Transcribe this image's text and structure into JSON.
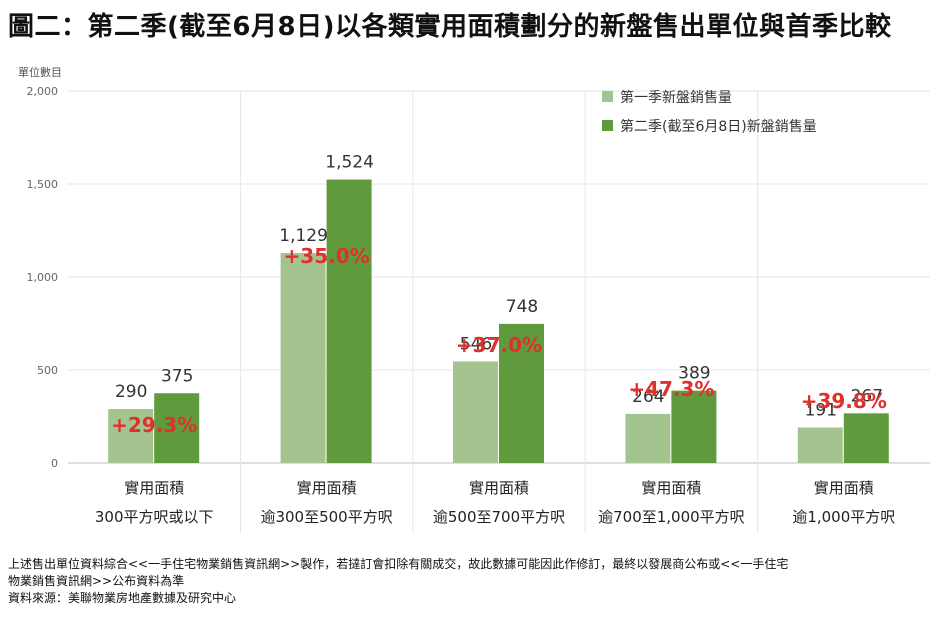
{
  "title": "圖二：第二季(截至6月8日)以各類實用面積劃分的新盤售出單位與首季比較",
  "chart_data": {
    "type": "bar",
    "ylabel": "單位數目",
    "ylim": [
      0,
      2000
    ],
    "yticks": [
      "0",
      "500",
      "1,000",
      "1,500",
      "2,000"
    ],
    "ytick_values": [
      0,
      500,
      1000,
      1500,
      2000
    ],
    "grid": true,
    "legend_position": "top-right",
    "categories": [
      [
        "實用面積",
        "300平方呎或以下"
      ],
      [
        "實用面積",
        "逾300至500平方呎"
      ],
      [
        "實用面積",
        "逾500至700平方呎"
      ],
      [
        "實用面積",
        "逾700至1,000平方呎"
      ],
      [
        "實用面積",
        "逾1,000平方呎"
      ]
    ],
    "series": [
      {
        "name": "第一季新盤銷售量",
        "color": "#a3c48e",
        "values": [
          290,
          1129,
          546,
          264,
          191
        ],
        "labels": [
          "290",
          "1,129",
          "546",
          "264",
          "191"
        ]
      },
      {
        "name": "第二季(截至6月8日)新盤銷售量",
        "color": "#5f9a3c",
        "values": [
          375,
          1524,
          748,
          389,
          267
        ],
        "labels": [
          "375",
          "1,524",
          "748",
          "389",
          "267"
        ]
      }
    ],
    "annotations": [
      "+29.3%",
      "+35.0%",
      "+37.0%",
      "+47.3%",
      "+39.8%"
    ],
    "annotation_color": "#e0302e"
  },
  "notes": [
    "上述售出單位資料綜合<<一手住宅物業銷售資訊網>>製作，若撻訂會扣除有關成交，故此數據可能因此作修訂，最終以發展商公布或<<一手住宅",
    "物業銷售資訊網>>公布資料為準",
    "資料來源：美聯物業房地產數據及研究中心"
  ]
}
